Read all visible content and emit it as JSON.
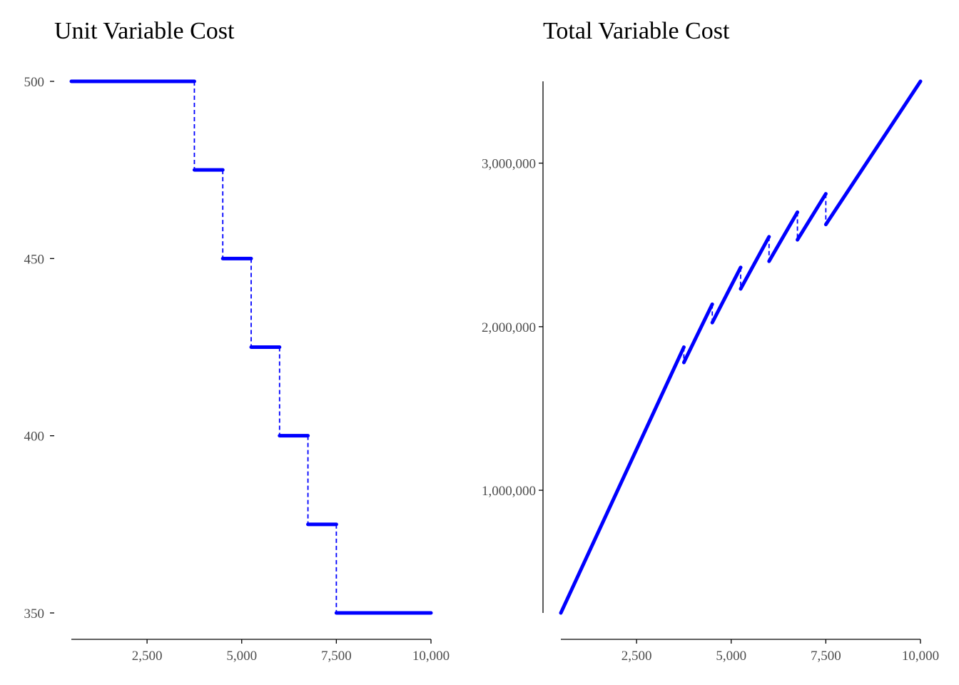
{
  "chart_data": [
    {
      "type": "line",
      "title": "Unit Variable Cost",
      "xlabel": "",
      "ylabel": "",
      "xlim": [
        500,
        10000
      ],
      "ylim": [
        350,
        500
      ],
      "x_ticks": [
        2500,
        5000,
        7500,
        10000
      ],
      "x_tick_labels": [
        "2,500",
        "5,000",
        "7,500",
        "10,000"
      ],
      "y_ticks": [
        350,
        400,
        450,
        500
      ],
      "y_tick_labels": [
        "350",
        "400",
        "450",
        "500"
      ],
      "line_color": "#0000ff",
      "segments": [
        {
          "x": [
            500,
            3750
          ],
          "y": [
            500,
            500
          ]
        },
        {
          "x": [
            3750,
            4500
          ],
          "y": [
            475,
            475
          ]
        },
        {
          "x": [
            4500,
            5250
          ],
          "y": [
            450,
            450
          ]
        },
        {
          "x": [
            5250,
            6000
          ],
          "y": [
            425,
            425
          ]
        },
        {
          "x": [
            6000,
            6750
          ],
          "y": [
            400,
            400
          ]
        },
        {
          "x": [
            6750,
            7500
          ],
          "y": [
            375,
            375
          ]
        },
        {
          "x": [
            7500,
            10000
          ],
          "y": [
            350,
            350
          ]
        }
      ],
      "jumps": [
        {
          "x": 3750,
          "y": [
            500,
            475
          ]
        },
        {
          "x": 4500,
          "y": [
            475,
            450
          ]
        },
        {
          "x": 5250,
          "y": [
            450,
            425
          ]
        },
        {
          "x": 6000,
          "y": [
            425,
            400
          ]
        },
        {
          "x": 6750,
          "y": [
            400,
            375
          ]
        },
        {
          "x": 7500,
          "y": [
            375,
            350
          ]
        }
      ],
      "grid": false
    },
    {
      "type": "line",
      "title": "Total Variable Cost",
      "xlabel": "",
      "ylabel": "",
      "xlim": [
        500,
        10000
      ],
      "ylim": [
        250000,
        3500000
      ],
      "x_ticks": [
        2500,
        5000,
        7500,
        10000
      ],
      "x_tick_labels": [
        "2,500",
        "5,000",
        "7,500",
        "10,000"
      ],
      "y_ticks": [
        1000000,
        2000000,
        3000000
      ],
      "y_tick_labels": [
        "1,000,000",
        "2,000,000",
        "3,000,000"
      ],
      "line_color": "#0000ff",
      "segments": [
        {
          "x": [
            500,
            3750
          ],
          "y": [
            250000,
            1875000
          ]
        },
        {
          "x": [
            3750,
            4500
          ],
          "y": [
            1781250,
            2137500
          ]
        },
        {
          "x": [
            4500,
            5250
          ],
          "y": [
            2025000,
            2362500
          ]
        },
        {
          "x": [
            5250,
            6000
          ],
          "y": [
            2231250,
            2550000
          ]
        },
        {
          "x": [
            6000,
            6750
          ],
          "y": [
            2400000,
            2700000
          ]
        },
        {
          "x": [
            6750,
            7500
          ],
          "y": [
            2531250,
            2812500
          ]
        },
        {
          "x": [
            7500,
            10000
          ],
          "y": [
            2625000,
            3500000
          ]
        }
      ],
      "jumps": [
        {
          "x": 3750,
          "y": [
            1875000,
            1781250
          ]
        },
        {
          "x": 4500,
          "y": [
            2137500,
            2025000
          ]
        },
        {
          "x": 5250,
          "y": [
            2362500,
            2231250
          ]
        },
        {
          "x": 6000,
          "y": [
            2550000,
            2400000
          ]
        },
        {
          "x": 6750,
          "y": [
            2700000,
            2531250
          ]
        },
        {
          "x": 7500,
          "y": [
            2812500,
            2625000
          ]
        }
      ],
      "grid": false
    }
  ]
}
